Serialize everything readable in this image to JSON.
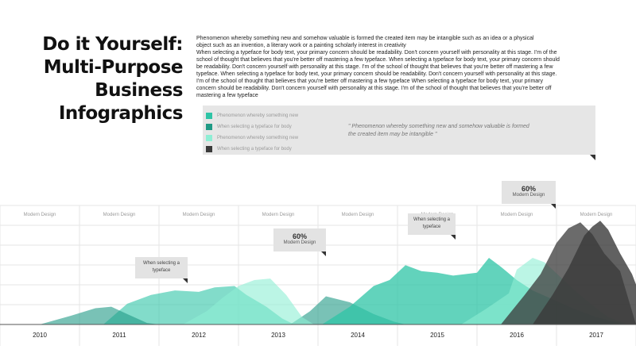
{
  "title_lines": [
    "Do it Yourself:",
    "Multi-Purpose",
    "Business",
    "Infographics"
  ],
  "body_lines": [
    "Phenomenon whereby something new and somehow valuable is formed the created item may be intangible such as an idea or a physical",
    "object such as an invention, a literary work or a painting scholarly interest in creativity",
    "When selecting a typeface for body text, your primary concern should be readability. Don't concern yourself with personality at this stage. I'm of the",
    "school of thought that believes that you're better off mastering a few typeface. When selecting a typeface for body text, your primary concern should",
    "be readability. Don't concern yourself with personality at this stage. I'm of the school of thought that believes that you're better off mastering a few",
    "typeface. When selecting a typeface for body text, your primary concern should be readability. Don't concern yourself with personality at this stage.",
    "I'm of the school of thought that believes that you're better off mastering a few typeface When selecting a typeface for body text, your primary",
    "concern should be readability. Don't concern yourself with personality at this stage. I'm of the school of thought that believes that you're better off",
    "mastering a few typeface"
  ],
  "legend": [
    {
      "label": "Phenomenon  whereby  something  new",
      "color": "#2ec4a6"
    },
    {
      "label": "When selecting  a typeface for body",
      "color": "#1f9a85"
    },
    {
      "label": "Phenomenon  whereby  something  new",
      "color": "#8eeed4"
    },
    {
      "label": "When selecting  a typeface for body",
      "color": "#3a3a3a"
    }
  ],
  "quote_lines": [
    "\" Phenomenon whereby something new and somehow valuable is formed",
    "the created item may be intangible \""
  ],
  "callouts": {
    "c1": {
      "line1": "When selecting a",
      "line2": "typeface"
    },
    "c2": {
      "pct": "60%",
      "sub": "Modern Design"
    },
    "c3": {
      "line1": "When selecting a",
      "line2": "typeface"
    },
    "c4": {
      "pct": "60%",
      "sub": "Modern Design"
    }
  },
  "chart_data": {
    "type": "area",
    "x_categories": [
      "2010",
      "2011",
      "2012",
      "2013",
      "2014",
      "2015",
      "2016",
      "2017"
    ],
    "column_labels": [
      "Modern Design",
      "Modern Design",
      "Modern Design",
      "Modern Design",
      "Modern Design",
      "Modern Design",
      "Modern Design",
      "Modern Design"
    ],
    "series": [
      {
        "color": "#2ec4a6",
        "opacity": 0.6,
        "points": [
          [
            1990,
            0
          ],
          [
            2010.8,
            0
          ],
          [
            2011.1,
            28
          ],
          [
            2011.4,
            40
          ],
          [
            2011.7,
            46
          ],
          [
            2012.0,
            44
          ],
          [
            2012.2,
            50
          ],
          [
            2012.45,
            52
          ],
          [
            2012.6,
            40
          ],
          [
            2012.85,
            24
          ],
          [
            2013.05,
            8
          ],
          [
            2013.2,
            0
          ]
        ]
      },
      {
        "color": "#1f9a85",
        "opacity": 0.6,
        "points": [
          [
            2010,
            0
          ],
          [
            2010.4,
            12
          ],
          [
            2010.7,
            22
          ],
          [
            2010.9,
            24
          ],
          [
            2011.1,
            14
          ],
          [
            2011.35,
            2
          ],
          [
            2011.5,
            0
          ],
          [
            2013.15,
            0
          ],
          [
            2013.4,
            18
          ],
          [
            2013.6,
            38
          ],
          [
            2013.9,
            30
          ],
          [
            2014.2,
            14
          ],
          [
            2014.45,
            4
          ],
          [
            2014.6,
            0
          ]
        ]
      },
      {
        "color": "#2ec4a6",
        "opacity": 0.75,
        "points": [
          [
            2013.55,
            0
          ],
          [
            2013.9,
            24
          ],
          [
            2014.2,
            52
          ],
          [
            2014.4,
            60
          ],
          [
            2014.6,
            80
          ],
          [
            2014.8,
            72
          ],
          [
            2015.0,
            70
          ],
          [
            2015.2,
            66
          ],
          [
            2015.5,
            70
          ],
          [
            2015.65,
            90
          ],
          [
            2015.8,
            78
          ],
          [
            2016.0,
            60
          ],
          [
            2016.2,
            46
          ],
          [
            2016.45,
            34
          ],
          [
            2016.7,
            22
          ],
          [
            2017.0,
            10
          ],
          [
            2017.35,
            0
          ]
        ]
      },
      {
        "color": "#8eeed4",
        "opacity": 0.6,
        "points": [
          [
            2011.8,
            0
          ],
          [
            2012.1,
            18
          ],
          [
            2012.3,
            36
          ],
          [
            2012.5,
            52
          ],
          [
            2012.7,
            60
          ],
          [
            2012.9,
            62
          ],
          [
            2013.1,
            40
          ],
          [
            2013.3,
            10
          ],
          [
            2013.45,
            0
          ],
          [
            2015.3,
            0
          ],
          [
            2015.6,
            20
          ],
          [
            2015.9,
            42
          ],
          [
            2016.0,
            74
          ],
          [
            2016.2,
            90
          ],
          [
            2016.35,
            84
          ],
          [
            2016.55,
            64
          ],
          [
            2016.75,
            44
          ],
          [
            2016.95,
            26
          ],
          [
            2017.15,
            10
          ],
          [
            2017.4,
            0
          ]
        ]
      },
      {
        "color": "#3a3a3a",
        "opacity": 0.75,
        "points": [
          [
            2015.8,
            0
          ],
          [
            2016.1,
            40
          ],
          [
            2016.3,
            68
          ],
          [
            2016.5,
            110
          ],
          [
            2016.65,
            130
          ],
          [
            2016.8,
            138
          ],
          [
            2016.95,
            122
          ],
          [
            2017.1,
            96
          ],
          [
            2017.3,
            72
          ],
          [
            2017.5,
            0
          ]
        ]
      },
      {
        "color": "#3a3a3a",
        "opacity": 0.8,
        "points": [
          [
            2016.2,
            0
          ],
          [
            2016.45,
            40
          ],
          [
            2016.65,
            76
          ],
          [
            2016.85,
            120
          ],
          [
            2016.95,
            132
          ],
          [
            2017.05,
            140
          ],
          [
            2017.15,
            128
          ],
          [
            2017.3,
            96
          ],
          [
            2017.45,
            68
          ],
          [
            2017.55,
            40
          ],
          [
            2017.7,
            0
          ]
        ]
      }
    ],
    "ylim": [
      0,
      150
    ],
    "grid": true
  }
}
